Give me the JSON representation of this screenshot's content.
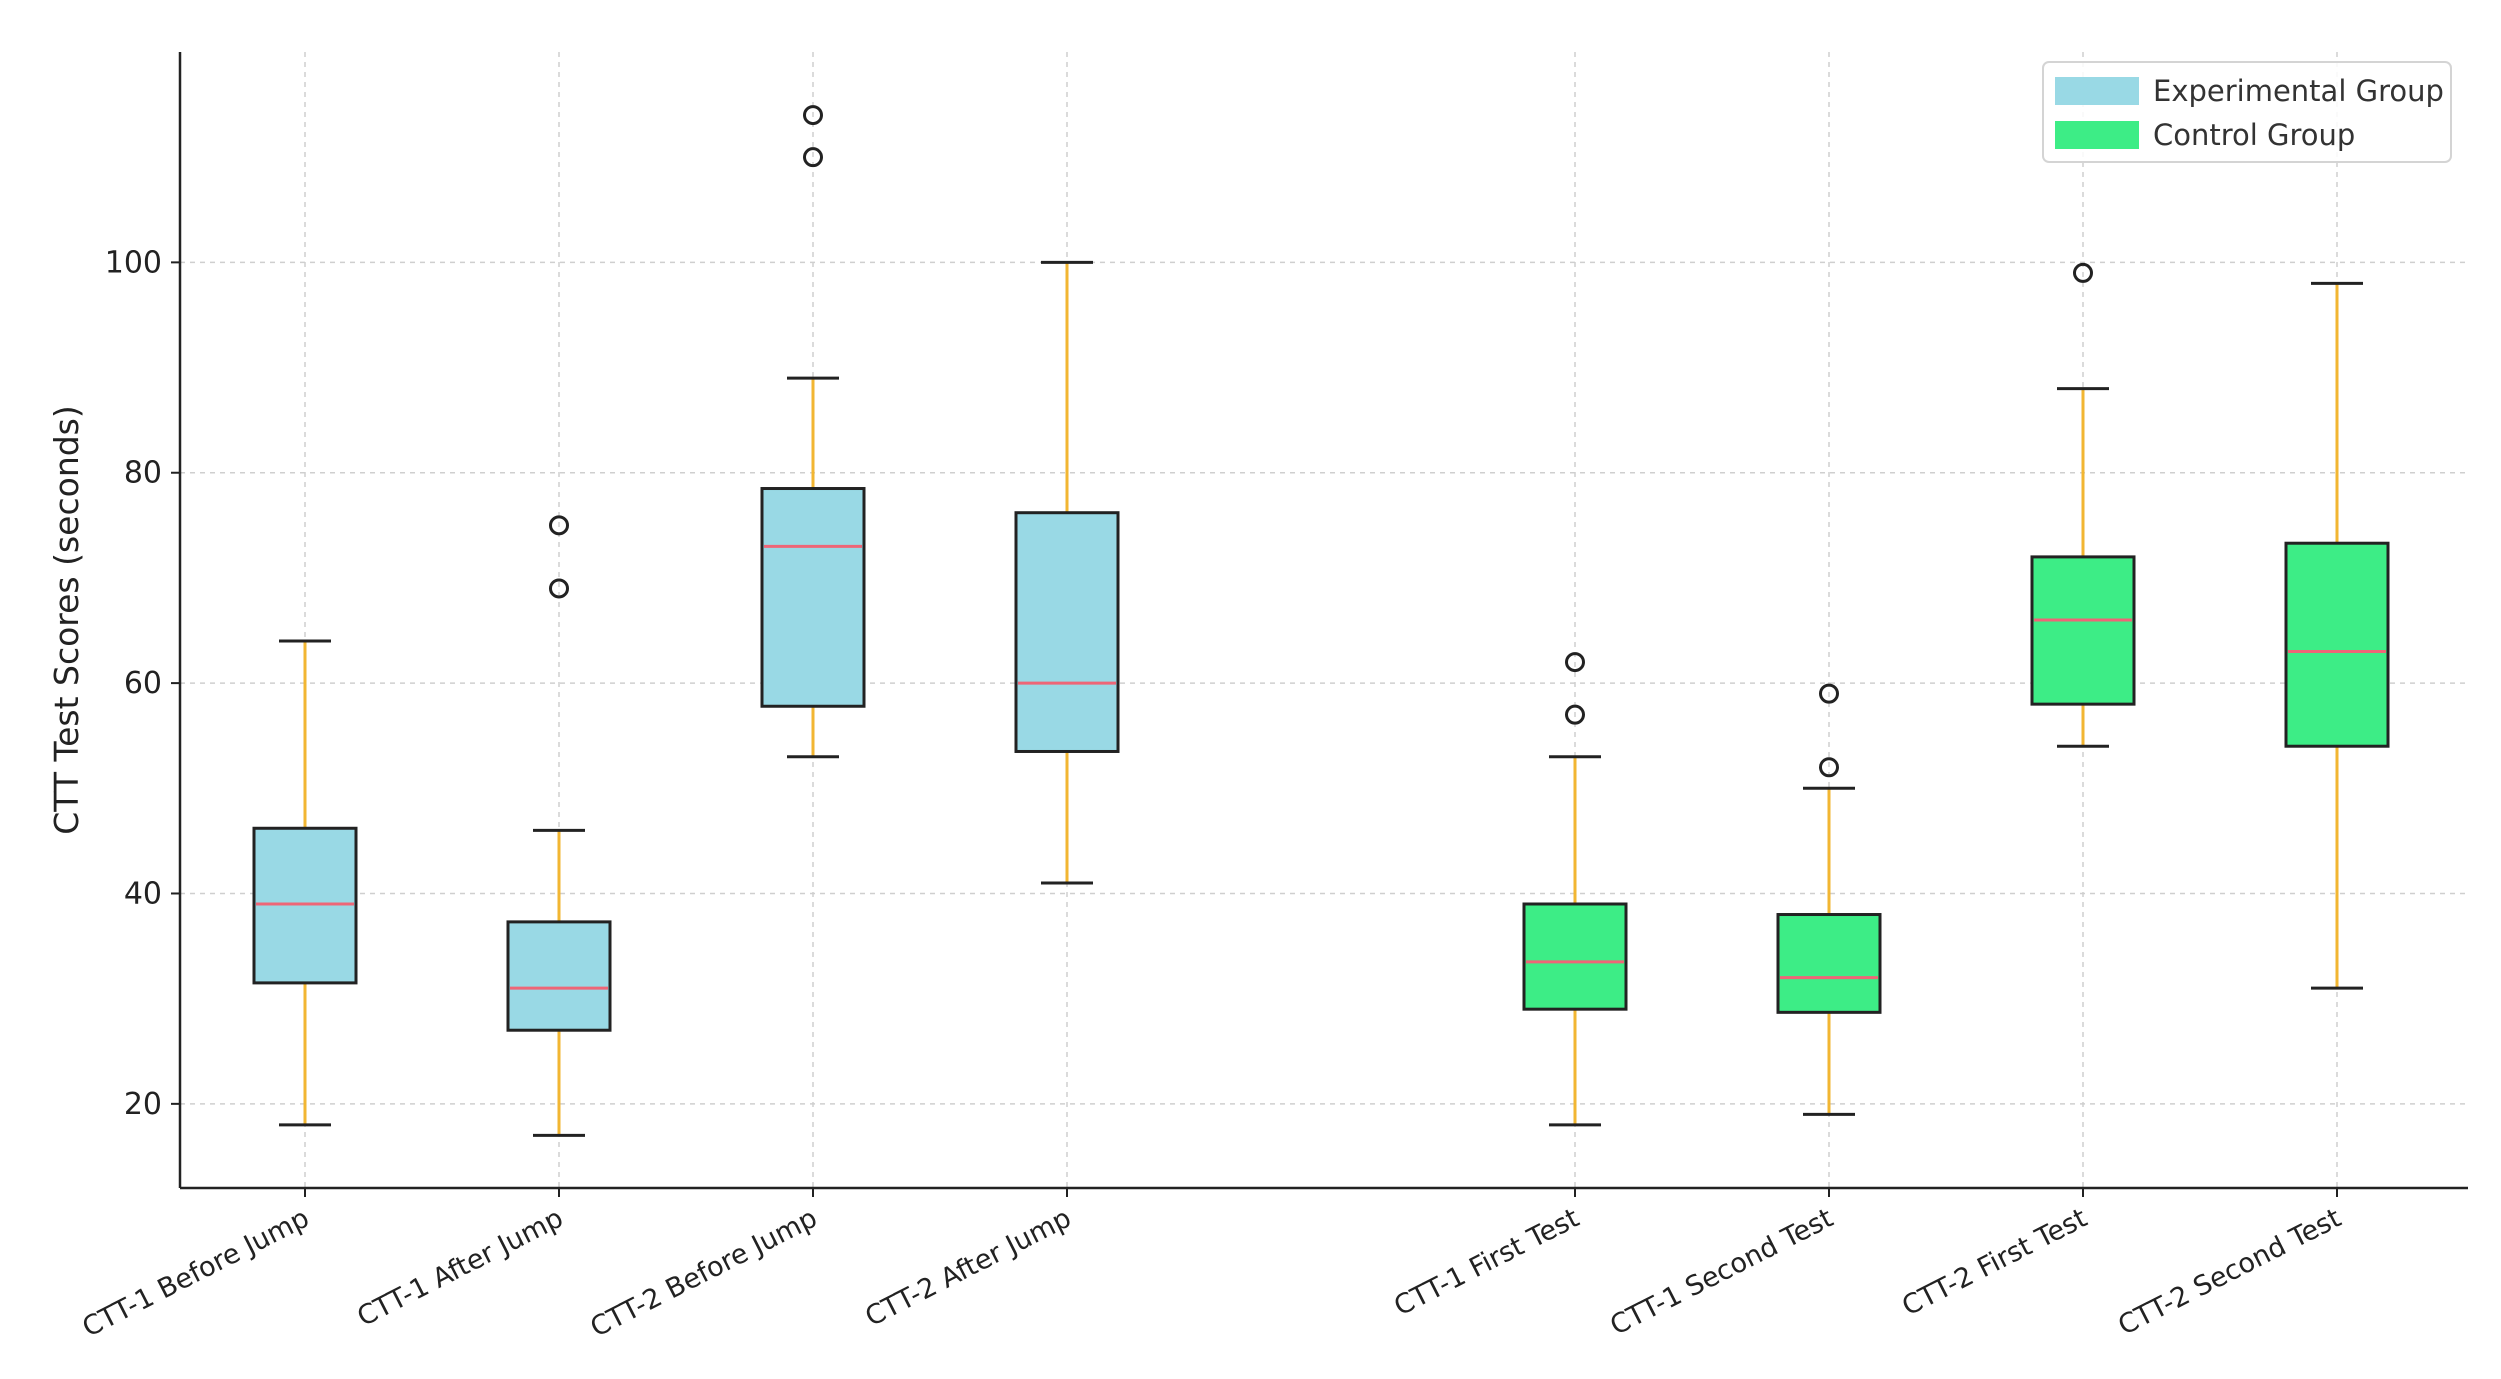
{
  "chart_data": {
    "type": "boxplot",
    "title": "",
    "xlabel": "",
    "ylabel": "CTT Test Scores (seconds)",
    "ylim": [
      12,
      120
    ],
    "yticks": [
      20,
      40,
      60,
      80,
      100
    ],
    "grid": true,
    "legend_position": "top-right",
    "colors": {
      "experimental": "#99d9e5",
      "control": "#3ded86",
      "whisker": "#f2b632",
      "median": "#ee6677",
      "edge": "#222222",
      "grid": "#cfcfcf"
    },
    "legend": [
      {
        "label": "Experimental Group",
        "color": "#99d9e5"
      },
      {
        "label": "Control Group",
        "color": "#3ded86"
      }
    ],
    "categories": [
      {
        "label": "CTT-1 Before Jump",
        "group": "experimental",
        "position": 1,
        "whislo": 18,
        "q1": 31.5,
        "med": 39,
        "q3": 46.2,
        "whishi": 64,
        "fliers": []
      },
      {
        "label": "CTT-1 After Jump",
        "group": "experimental",
        "position": 2,
        "whislo": 17,
        "q1": 27,
        "med": 31,
        "q3": 37.3,
        "whishi": 46,
        "fliers": [
          69,
          75
        ]
      },
      {
        "label": "CTT-2 Before Jump",
        "group": "experimental",
        "position": 3,
        "whislo": 53,
        "q1": 57.8,
        "med": 73,
        "q3": 78.5,
        "whishi": 89,
        "fliers": [
          110,
          114
        ]
      },
      {
        "label": "CTT-2 After Jump",
        "group": "experimental",
        "position": 4,
        "whislo": 41,
        "q1": 53.5,
        "med": 60,
        "q3": 76.2,
        "whishi": 100,
        "fliers": []
      },
      {
        "label": "CTT-1 First Test",
        "group": "control",
        "position": 6,
        "whislo": 18,
        "q1": 29,
        "med": 33.5,
        "q3": 39,
        "whishi": 53,
        "fliers": [
          57,
          62
        ]
      },
      {
        "label": "CTT-1 Second Test",
        "group": "control",
        "position": 7,
        "whislo": 19,
        "q1": 28.7,
        "med": 32,
        "q3": 38,
        "whishi": 50,
        "fliers": [
          52,
          59
        ]
      },
      {
        "label": "CTT-2 First Test",
        "group": "control",
        "position": 8,
        "whislo": 54,
        "q1": 58,
        "med": 66,
        "q3": 72,
        "whishi": 88,
        "fliers": [
          99
        ]
      },
      {
        "label": "CTT-2 Second Test",
        "group": "control",
        "position": 9,
        "whislo": 31,
        "q1": 54,
        "med": 63,
        "q3": 73.3,
        "whishi": 98,
        "fliers": []
      }
    ]
  }
}
